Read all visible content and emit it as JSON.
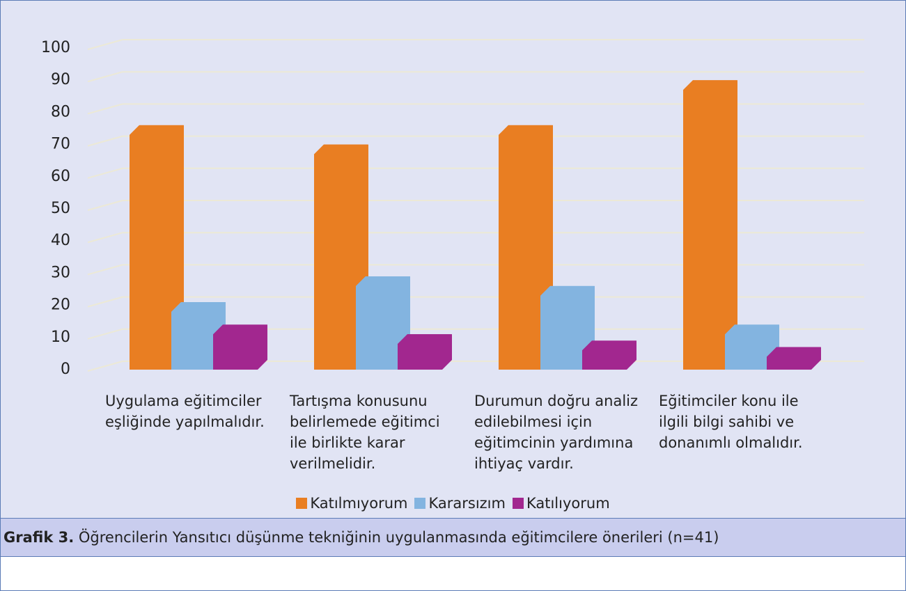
{
  "chart_data": {
    "type": "bar",
    "categories": [
      "Uygulama eğitimciler eşliğinde yapılmalıdır.",
      "Tartışma konusunu belirlemede eğitimci ile birlikte karar verilmelidir.",
      "Durumun doğru analiz edilebilmesi için eğitimcinin yardımına ihtiyaç vardır.",
      "Eğitimciler konu ile ilgili bilgi sahibi ve donanımlı olmalıdır."
    ],
    "series": [
      {
        "name": "Katılmıyorum",
        "color": "#e97e22",
        "values": [
          76,
          70,
          76,
          90
        ]
      },
      {
        "name": "Kararsızım",
        "color": "#83b4e0",
        "values": [
          21,
          29,
          26,
          14
        ]
      },
      {
        "name": "Katılıyorum",
        "color": "#a2278f",
        "values": [
          14,
          11,
          9,
          7
        ]
      }
    ],
    "ylim": [
      0,
      100
    ],
    "yticks": [
      0,
      10,
      20,
      30,
      40,
      50,
      60,
      70,
      80,
      90,
      100
    ],
    "grid": true,
    "caption": {
      "label": "Grafik 3.",
      "text": "Öğrencilerin Yansıtıcı düşünme tekniğinin uygulanmasında eğitimcilere önerileri (n=41)"
    }
  }
}
